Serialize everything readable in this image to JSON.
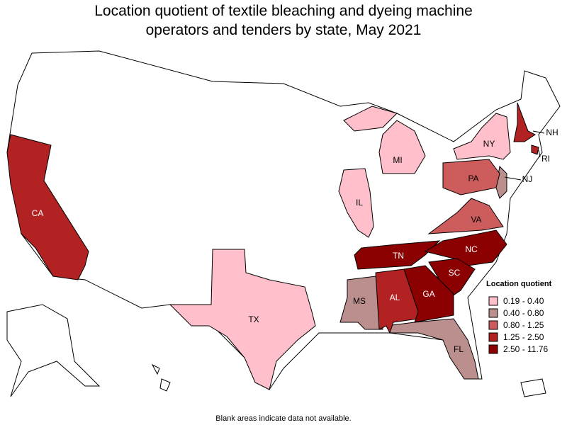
{
  "title": "Location quotient of textile bleaching and dyeing machine operators and tenders by state, May 2021",
  "legend": {
    "title": "Location quotient",
    "items": [
      {
        "label": "0.19 - 0.40",
        "color": "#ffc0cb",
        "states": [
          "IL",
          "MI",
          "NY",
          "TX"
        ]
      },
      {
        "label": "0.40 - 0.80",
        "color": "#bc8f8f",
        "states": [
          "MS",
          "FL",
          "NJ"
        ]
      },
      {
        "label": "0.80 - 1.25",
        "color": "#cd5c5c",
        "states": [
          "PA",
          "VA"
        ]
      },
      {
        "label": "1.25 - 2.50",
        "color": "#b22222",
        "states": [
          "CA",
          "AL",
          "NH",
          "RI"
        ]
      },
      {
        "label": "2.50 - 11.76",
        "color": "#8b0000",
        "states": [
          "TN",
          "NC",
          "SC",
          "GA"
        ]
      }
    ]
  },
  "note": "Blank areas indicate data not available."
}
